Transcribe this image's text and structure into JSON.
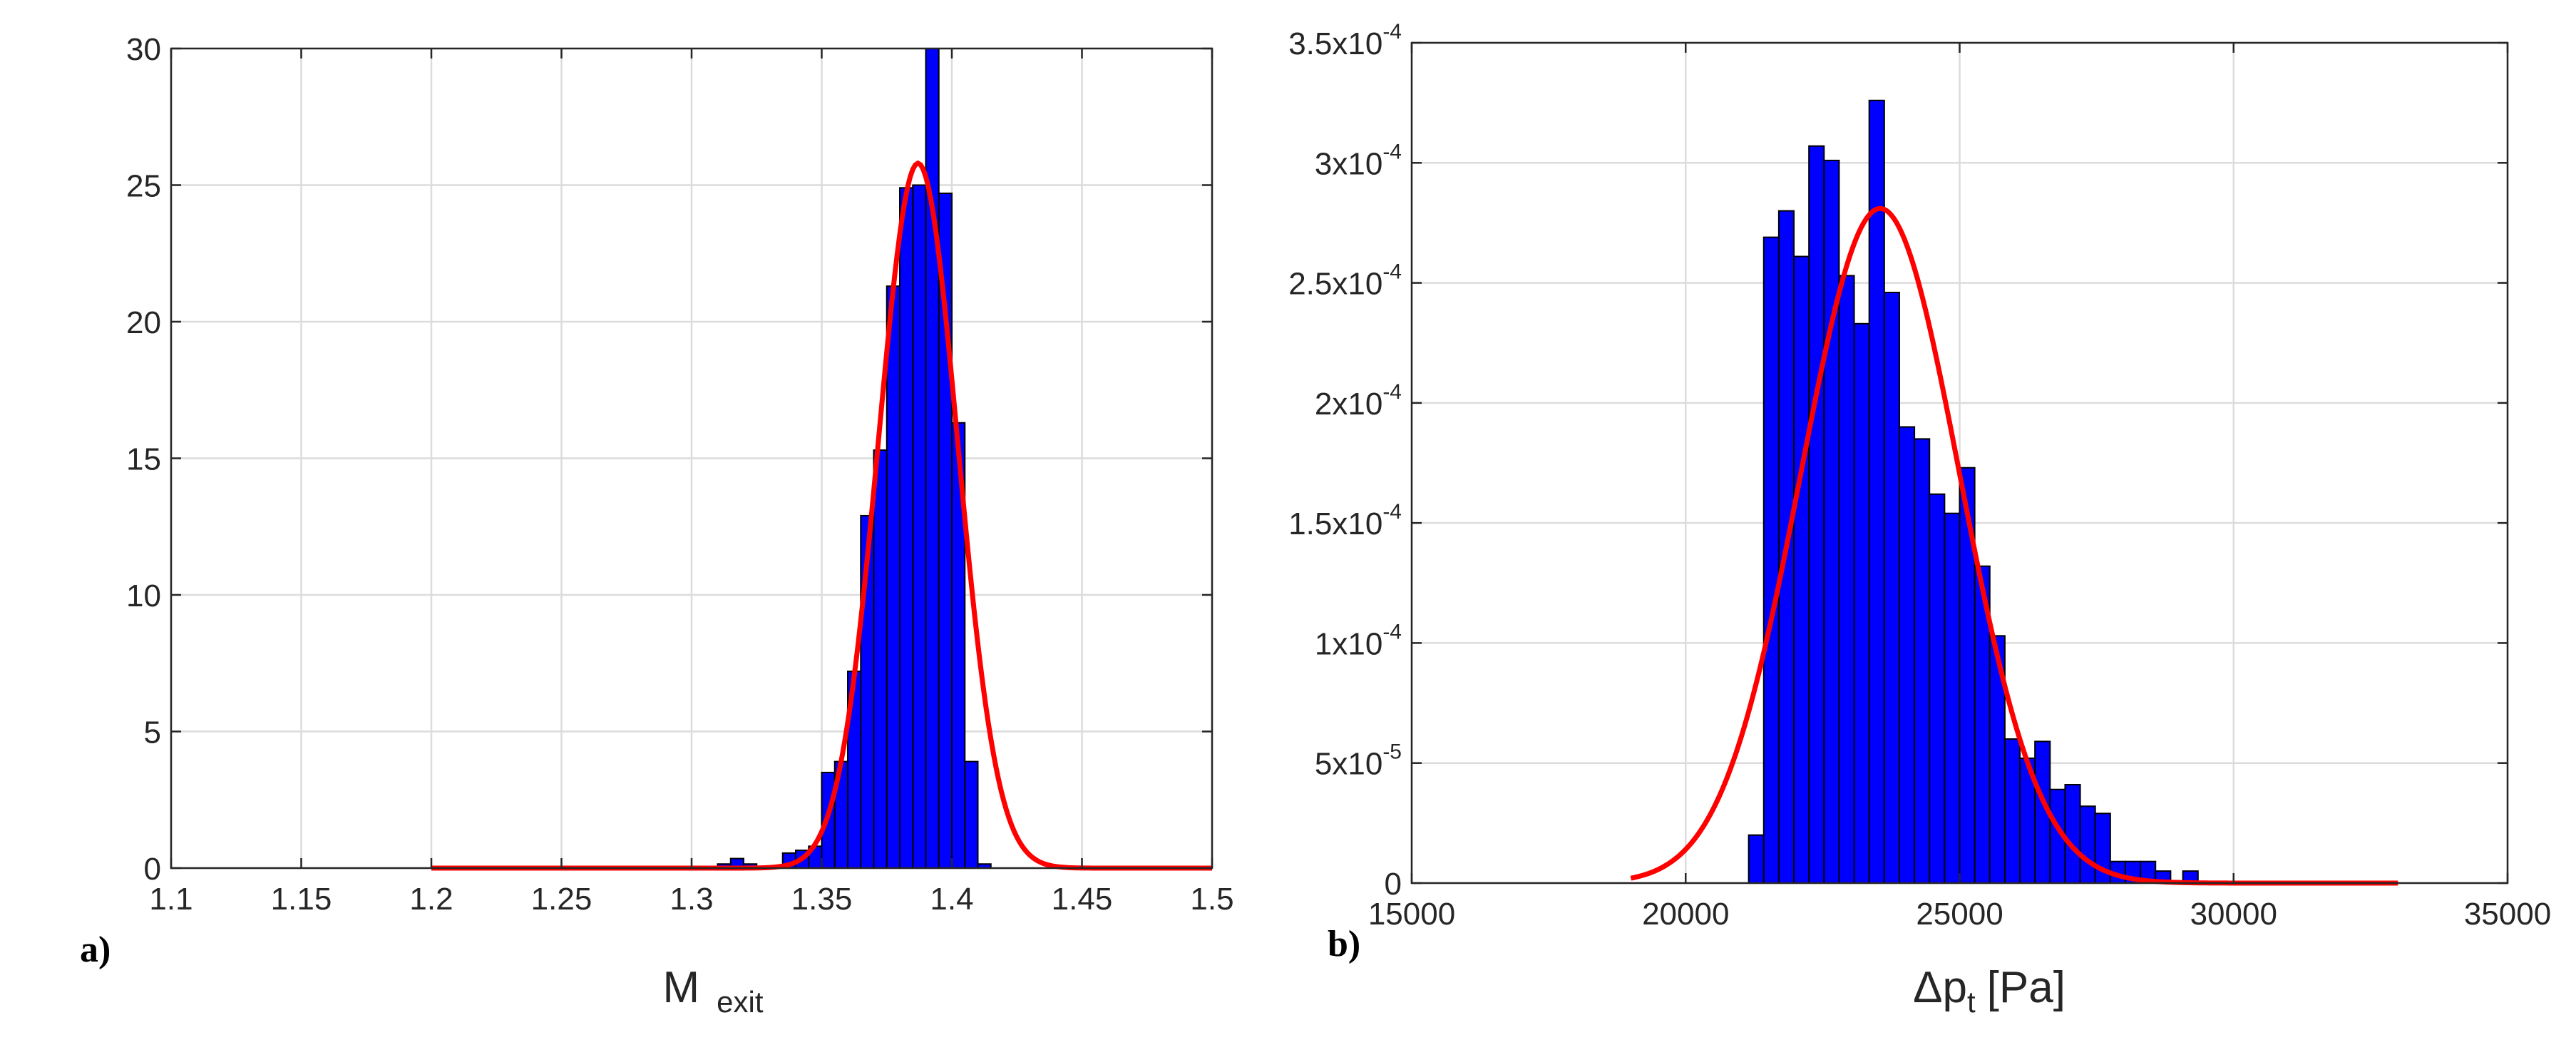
{
  "chart_data": [
    {
      "type": "bar",
      "panel_label": "a)",
      "xlabel_main": "M",
      "xlabel_sub": "exit",
      "ylabel": "",
      "xlim": [
        1.1,
        1.5
      ],
      "ylim": [
        0,
        30
      ],
      "x_ticks": [
        1.1,
        1.15,
        1.2,
        1.25,
        1.3,
        1.35,
        1.4,
        1.45,
        1.5
      ],
      "x_tick_labels": [
        "1.1",
        "1.15",
        "1.2",
        "1.25",
        "1.3",
        "1.35",
        "1.4",
        "1.45",
        "1.5"
      ],
      "y_ticks": [
        0,
        5,
        10,
        15,
        20,
        25,
        30
      ],
      "y_tick_labels": [
        "0",
        "5",
        "10",
        "15",
        "20",
        "25",
        "30"
      ],
      "grid": true,
      "bin_width": 0.005,
      "bins_start": [
        1.31,
        1.315,
        1.32,
        1.325,
        1.33,
        1.335,
        1.34,
        1.345,
        1.35,
        1.355,
        1.36,
        1.365,
        1.37,
        1.375,
        1.38,
        1.385,
        1.39,
        1.395,
        1.4,
        1.405,
        1.41
      ],
      "values": [
        0.15,
        0.35,
        0.15,
        0.05,
        0.05,
        0.55,
        0.65,
        0.8,
        3.5,
        3.9,
        7.2,
        12.9,
        15.3,
        21.3,
        24.9,
        25.0,
        30.0,
        24.7,
        16.3,
        3.9,
        0.15
      ],
      "bar_color": "#0000ff",
      "fit_curve": {
        "type": "normal",
        "mean": 1.387,
        "sd": 0.0152,
        "peak": 25.8,
        "x_range": [
          1.2,
          1.5
        ],
        "color": "#ff0000"
      }
    },
    {
      "type": "bar",
      "panel_label": "b)",
      "xlabel": "Δp",
      "xlabel_sub": "t",
      "xlabel_unit": "[Pa]",
      "ylabel": "",
      "xlim": [
        15000,
        35000
      ],
      "ylim": [
        0,
        0.00035
      ],
      "x_ticks": [
        15000,
        20000,
        25000,
        30000,
        35000
      ],
      "x_tick_labels": [
        "15000",
        "20000",
        "25000",
        "30000",
        "35000"
      ],
      "y_ticks": [
        0,
        5e-05,
        0.0001,
        0.00015,
        0.0002,
        0.00025,
        0.0003,
        0.00035
      ],
      "y_tick_labels": [
        {
          "m": "0",
          "e": ""
        },
        {
          "m": "5x10",
          "e": "-5"
        },
        {
          "m": "1x10",
          "e": "-4"
        },
        {
          "m": "1.5x10",
          "e": "-4"
        },
        {
          "m": "2x10",
          "e": "-4"
        },
        {
          "m": "2.5x10",
          "e": "-4"
        },
        {
          "m": "3x10",
          "e": "-4"
        },
        {
          "m": "3.5x10",
          "e": "-4"
        }
      ],
      "grid": true,
      "bin_width": 275,
      "bins_start": [
        21150,
        21425,
        21700,
        21975,
        22250,
        22525,
        22800,
        23075,
        23350,
        23625,
        23900,
        24175,
        24450,
        24725,
        25000,
        25275,
        25550,
        25825,
        26100,
        26375,
        26650,
        26925,
        27200,
        27475,
        27750,
        28025,
        28300,
        28575,
        29075
      ],
      "values": [
        2e-05,
        0.000269,
        0.00028,
        0.000261,
        0.000307,
        0.000301,
        0.000253,
        0.000233,
        0.000326,
        0.000246,
        0.00019,
        0.000185,
        0.000162,
        0.000154,
        0.000173,
        0.000132,
        0.000103,
        6e-05,
        5.2e-05,
        5.9e-05,
        3.9e-05,
        4.1e-05,
        3.2e-05,
        2.9e-05,
        9e-06,
        9e-06,
        9e-06,
        5e-06,
        5e-06
      ],
      "bar_color": "#0000ff",
      "fit_curve": {
        "type": "normal",
        "mean": 23550,
        "sd": 1450,
        "peak": 0.000281,
        "x_range": [
          19000,
          33000
        ],
        "color": "#ff0000"
      }
    }
  ]
}
